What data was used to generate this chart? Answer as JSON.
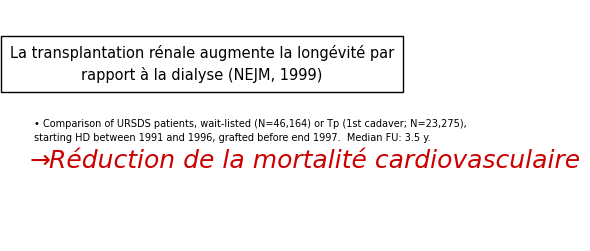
{
  "title_line1": "La transplantation rénale augmente la longévité par",
  "title_line2": "rapport à la dialyse (NEJM, 1999)",
  "bullet_text_line1": "• Comparison of URSDS patients, wait-listed (N=46,164) or Tp (1st cadaver; N=23,275),",
  "bullet_text_line2": "starting HD between 1991 and 1996, grafted before end 1997.  Median FU: 3.5 y.",
  "arrow_char": "→",
  "highlight_text": "Réduction de la mortalité cardiovasculaire",
  "background_color": "#ffffff",
  "box_color": "#ffffff",
  "box_edge_color": "#000000",
  "title_fontsize": 10.5,
  "bullet_fontsize": 7.0,
  "highlight_fontsize": 18,
  "highlight_color": "#cc0000"
}
